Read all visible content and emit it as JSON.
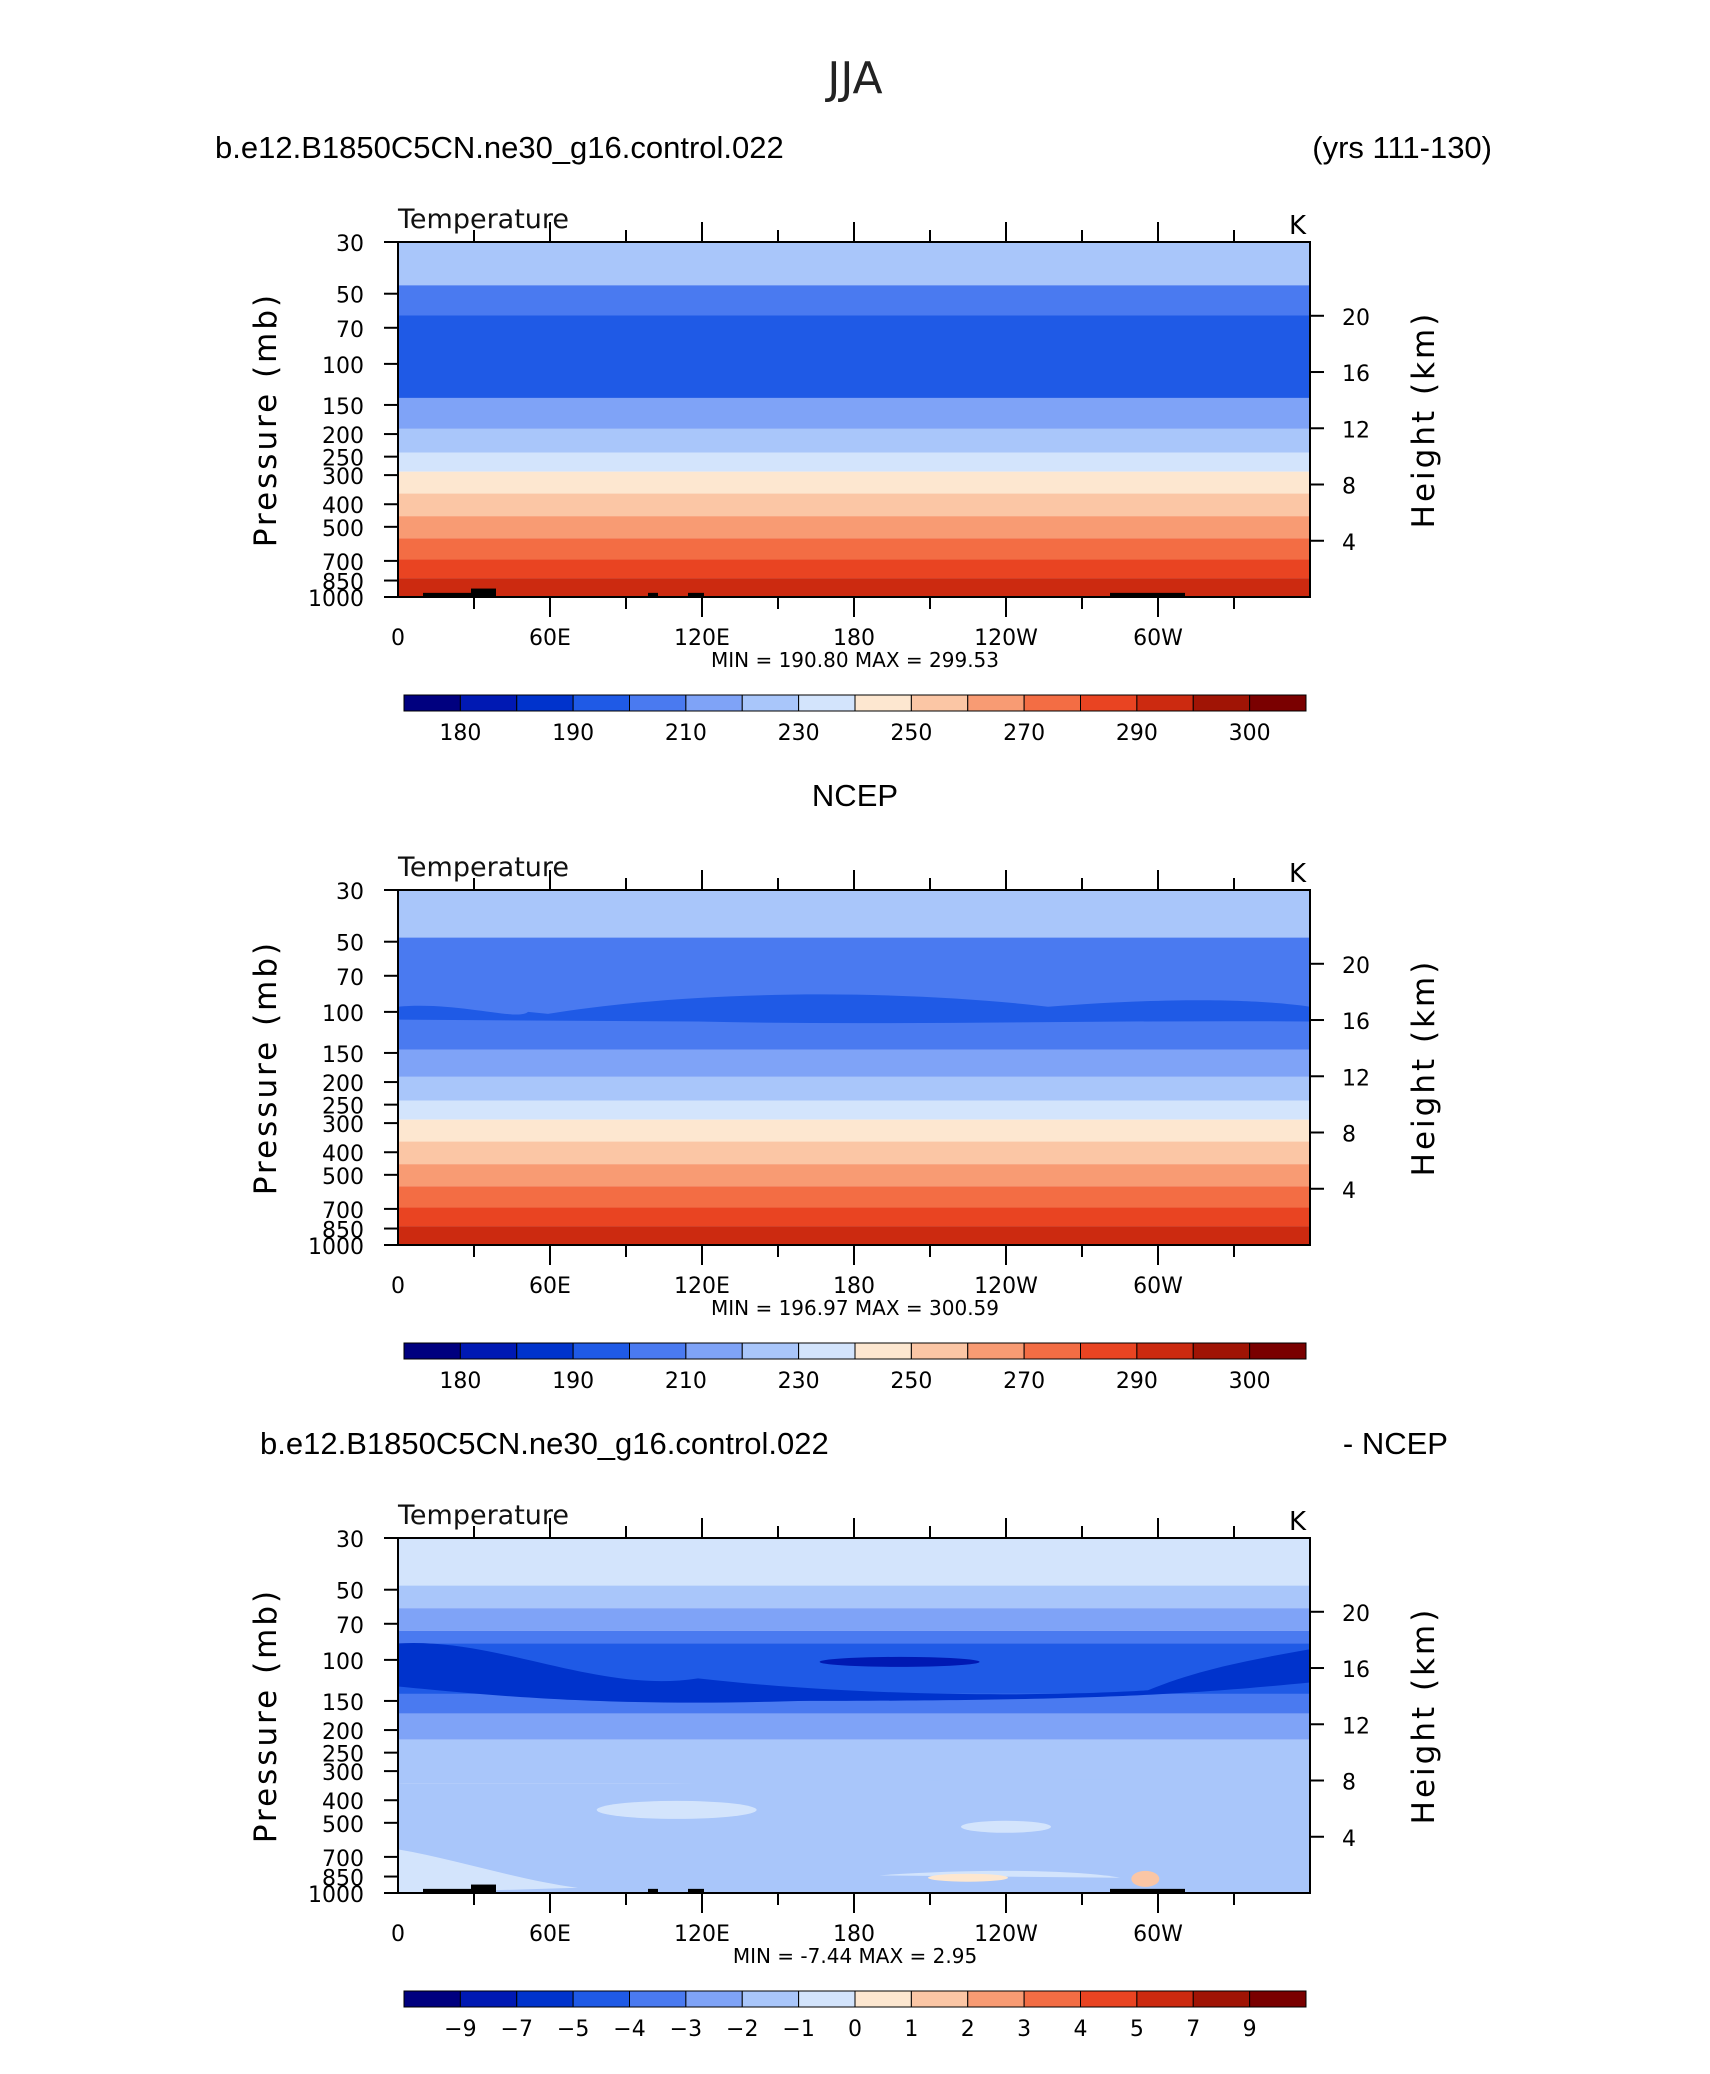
{
  "title": "JJA",
  "axes_common": {
    "pressure_ticks": [
      "30",
      "50",
      "70",
      "100",
      "150",
      "200",
      "250",
      "300",
      "400",
      "500",
      "700",
      "850",
      "1000"
    ],
    "pressure_values": [
      30,
      50,
      70,
      100,
      150,
      200,
      250,
      300,
      400,
      500,
      700,
      850,
      1000
    ],
    "height_ticks": [
      "20",
      "16",
      "12",
      "8",
      "4"
    ],
    "height_values": [
      20,
      16,
      12,
      8,
      4
    ],
    "lon_ticks": [
      "0",
      "60E",
      "120E",
      "180",
      "120W",
      "60W"
    ],
    "lon_values": [
      0,
      60,
      120,
      180,
      240,
      300
    ],
    "left_label": "Pressure (mb)",
    "right_label": "Height (km)",
    "var_label": "Temperature",
    "unit_label": "K"
  },
  "panels": [
    {
      "header_left": "b.e12.B1850C5CN.ne30_g16.control.022",
      "header_right": "(yrs 111-130)",
      "header_center": "",
      "stats": "MIN = 190.80 MAX = 299.53",
      "colorbar_labels": [
        "180",
        "190",
        "210",
        "230",
        "250",
        "270",
        "290",
        "300"
      ]
    },
    {
      "header_left": "",
      "header_right": "",
      "header_center": "NCEP",
      "stats": "MIN = 196.97 MAX = 300.59",
      "colorbar_labels": [
        "180",
        "190",
        "210",
        "230",
        "250",
        "270",
        "290",
        "300"
      ]
    },
    {
      "header_left": "b.e12.B1850C5CN.ne30_g16.control.022",
      "header_right": "- NCEP",
      "header_center": "",
      "stats": "MIN = -7.44 MAX = 2.95",
      "colorbar_labels": [
        "−9",
        "−7",
        "−5",
        "−4",
        "−3",
        "−2",
        "−1",
        "0",
        "1",
        "2",
        "3",
        "4",
        "5",
        "7",
        "9"
      ]
    }
  ],
  "colors": {
    "temp_scale": [
      "#00007f",
      "#0019b3",
      "#0033cc",
      "#1f5ae6",
      "#4a7af0",
      "#7fa3f7",
      "#a9c6fa",
      "#d3e4fc",
      "#fde7d0",
      "#fbc6a5",
      "#f89b73",
      "#f36d44",
      "#e94422",
      "#cc2a10",
      "#a01405",
      "#7a0000"
    ],
    "diff_scale": [
      "#00007f",
      "#0019b3",
      "#0033cc",
      "#1f5ae6",
      "#4a7af0",
      "#7fa3f7",
      "#a9c6fa",
      "#d3e4fc",
      "#fde7d0",
      "#fbc6a5",
      "#f89b73",
      "#f36d44",
      "#e94422",
      "#cc2a10",
      "#a01405",
      "#7a0000"
    ]
  },
  "chart_data": [
    {
      "type": "heatmap",
      "title": "b.e12.B1850C5CN.ne30_g16.control.022 (yrs 111-130)",
      "variable": "Temperature",
      "units": "K",
      "xlabel": "",
      "ylabel": "Pressure (mb)",
      "y2label": "Height (km)",
      "x_range": [
        0,
        360
      ],
      "y_range": [
        1000,
        30
      ],
      "y_scale": "log",
      "levels": [
        180,
        185,
        190,
        200,
        210,
        220,
        230,
        240,
        250,
        260,
        270,
        280,
        290,
        295,
        300
      ],
      "bands": [
        {
          "p_top": 30,
          "p_bot": 46,
          "value": 220
        },
        {
          "p_top": 46,
          "p_bot": 62,
          "value": 205
        },
        {
          "p_top": 62,
          "p_bot": 140,
          "value": 197
        },
        {
          "p_top": 140,
          "p_bot": 190,
          "value": 212
        },
        {
          "p_top": 190,
          "p_bot": 240,
          "value": 222
        },
        {
          "p_top": 240,
          "p_bot": 290,
          "value": 232
        },
        {
          "p_top": 290,
          "p_bot": 360,
          "value": 245
        },
        {
          "p_top": 360,
          "p_bot": 450,
          "value": 255
        },
        {
          "p_top": 450,
          "p_bot": 560,
          "value": 265
        },
        {
          "p_top": 560,
          "p_bot": 690,
          "value": 275
        },
        {
          "p_top": 690,
          "p_bot": 830,
          "value": 285
        },
        {
          "p_top": 830,
          "p_bot": 1000,
          "value": 292
        }
      ],
      "min": 190.8,
      "max": 299.53
    },
    {
      "type": "heatmap",
      "title": "NCEP",
      "variable": "Temperature",
      "units": "K",
      "xlabel": "",
      "ylabel": "Pressure (mb)",
      "y2label": "Height (km)",
      "x_range": [
        0,
        360
      ],
      "y_range": [
        1000,
        30
      ],
      "y_scale": "log",
      "levels": [
        180,
        185,
        190,
        200,
        210,
        220,
        230,
        240,
        250,
        260,
        270,
        280,
        290,
        295,
        300
      ],
      "bands": [
        {
          "p_top": 30,
          "p_bot": 48,
          "value": 220
        },
        {
          "p_top": 48,
          "p_bot": 145,
          "value": 205
        },
        {
          "p_top": 145,
          "p_bot": 190,
          "value": 212
        },
        {
          "p_top": 190,
          "p_bot": 240,
          "value": 222
        },
        {
          "p_top": 240,
          "p_bot": 290,
          "value": 232
        },
        {
          "p_top": 290,
          "p_bot": 360,
          "value": 245
        },
        {
          "p_top": 360,
          "p_bot": 450,
          "value": 255
        },
        {
          "p_top": 450,
          "p_bot": 560,
          "value": 265
        },
        {
          "p_top": 560,
          "p_bot": 690,
          "value": 275
        },
        {
          "p_top": 690,
          "p_bot": 830,
          "value": 285
        },
        {
          "p_top": 830,
          "p_bot": 1000,
          "value": 292
        }
      ],
      "min": 196.97,
      "max": 300.59
    },
    {
      "type": "heatmap",
      "title": "b.e12.B1850C5CN.ne30_g16.control.022 - NCEP",
      "variable": "Temperature",
      "units": "K",
      "xlabel": "",
      "ylabel": "Pressure (mb)",
      "y2label": "Height (km)",
      "x_range": [
        0,
        360
      ],
      "y_range": [
        1000,
        30
      ],
      "y_scale": "log",
      "levels": [
        -9,
        -7,
        -5,
        -4,
        -3,
        -2,
        -1,
        0,
        1,
        2,
        3,
        4,
        5,
        7,
        9
      ],
      "bands": [
        {
          "p_top": 30,
          "p_bot": 48,
          "value": -0.5
        },
        {
          "p_top": 48,
          "p_bot": 60,
          "value": -1.5
        },
        {
          "p_top": 60,
          "p_bot": 75,
          "value": -2.5
        },
        {
          "p_top": 75,
          "p_bot": 85,
          "value": -3.5
        },
        {
          "p_top": 85,
          "p_bot": 140,
          "value": -4.5
        },
        {
          "p_top": 140,
          "p_bot": 170,
          "value": -3.5
        },
        {
          "p_top": 170,
          "p_bot": 220,
          "value": -2.5
        },
        {
          "p_top": 220,
          "p_bot": 340,
          "value": -1.5
        },
        {
          "p_top": 340,
          "p_bot": 1000,
          "value": -1.5
        }
      ],
      "min": -7.44,
      "max": 2.95
    }
  ]
}
